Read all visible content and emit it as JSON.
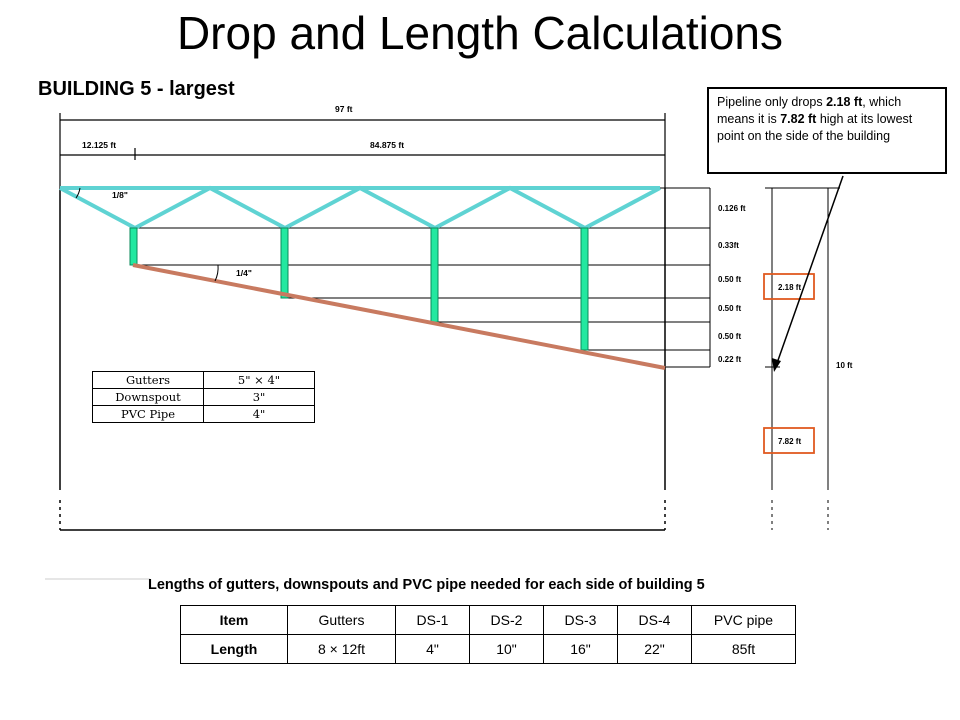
{
  "title": "Drop and Length Calculations",
  "subtitle": "BUILDING 5 - largest",
  "callout": {
    "text_before_1": "Pipeline only drops ",
    "highlight_1": "2.18 ft",
    "text_before_2": ", which means it is ",
    "highlight_2": "7.82 ft",
    "text_after": " high at its lowest point on the side of the building"
  },
  "dimensions": {
    "total_width": "97 ft",
    "left_segment": "12.125 ft",
    "right_segment": "84.875 ft",
    "slope_top": "1/8\"",
    "slope_pipe": "1/4\"",
    "drops": [
      "0.126 ft",
      "0.33ft",
      "0.50 ft",
      "0.50 ft",
      "0.50 ft",
      "0.22 ft"
    ],
    "total_drop": "2.18 ft",
    "height": "10 ft",
    "remaining_height": "7.82 ft"
  },
  "spec_table": {
    "rows": [
      {
        "item": "Gutters",
        "size": "5\" × 4\""
      },
      {
        "item": "Downspout",
        "size": "3\""
      },
      {
        "item": "PVC Pipe",
        "size": "4\""
      }
    ]
  },
  "caption": "Lengths of gutters, downspouts and PVC pipe needed for each side of building 5",
  "bottom_table": {
    "header": [
      "Item",
      "Gutters",
      "DS-1",
      "DS-2",
      "DS-3",
      "DS-4",
      "PVC pipe"
    ],
    "row": [
      "Length",
      "8 × 12ft",
      "4\"",
      "10\"",
      "16\"",
      "22\"",
      "85ft"
    ]
  },
  "colors": {
    "truss": "#5fd3d3",
    "downspout": "#22e8a0",
    "pipe": "#c87a60",
    "highlight_box": "#e05a20"
  }
}
